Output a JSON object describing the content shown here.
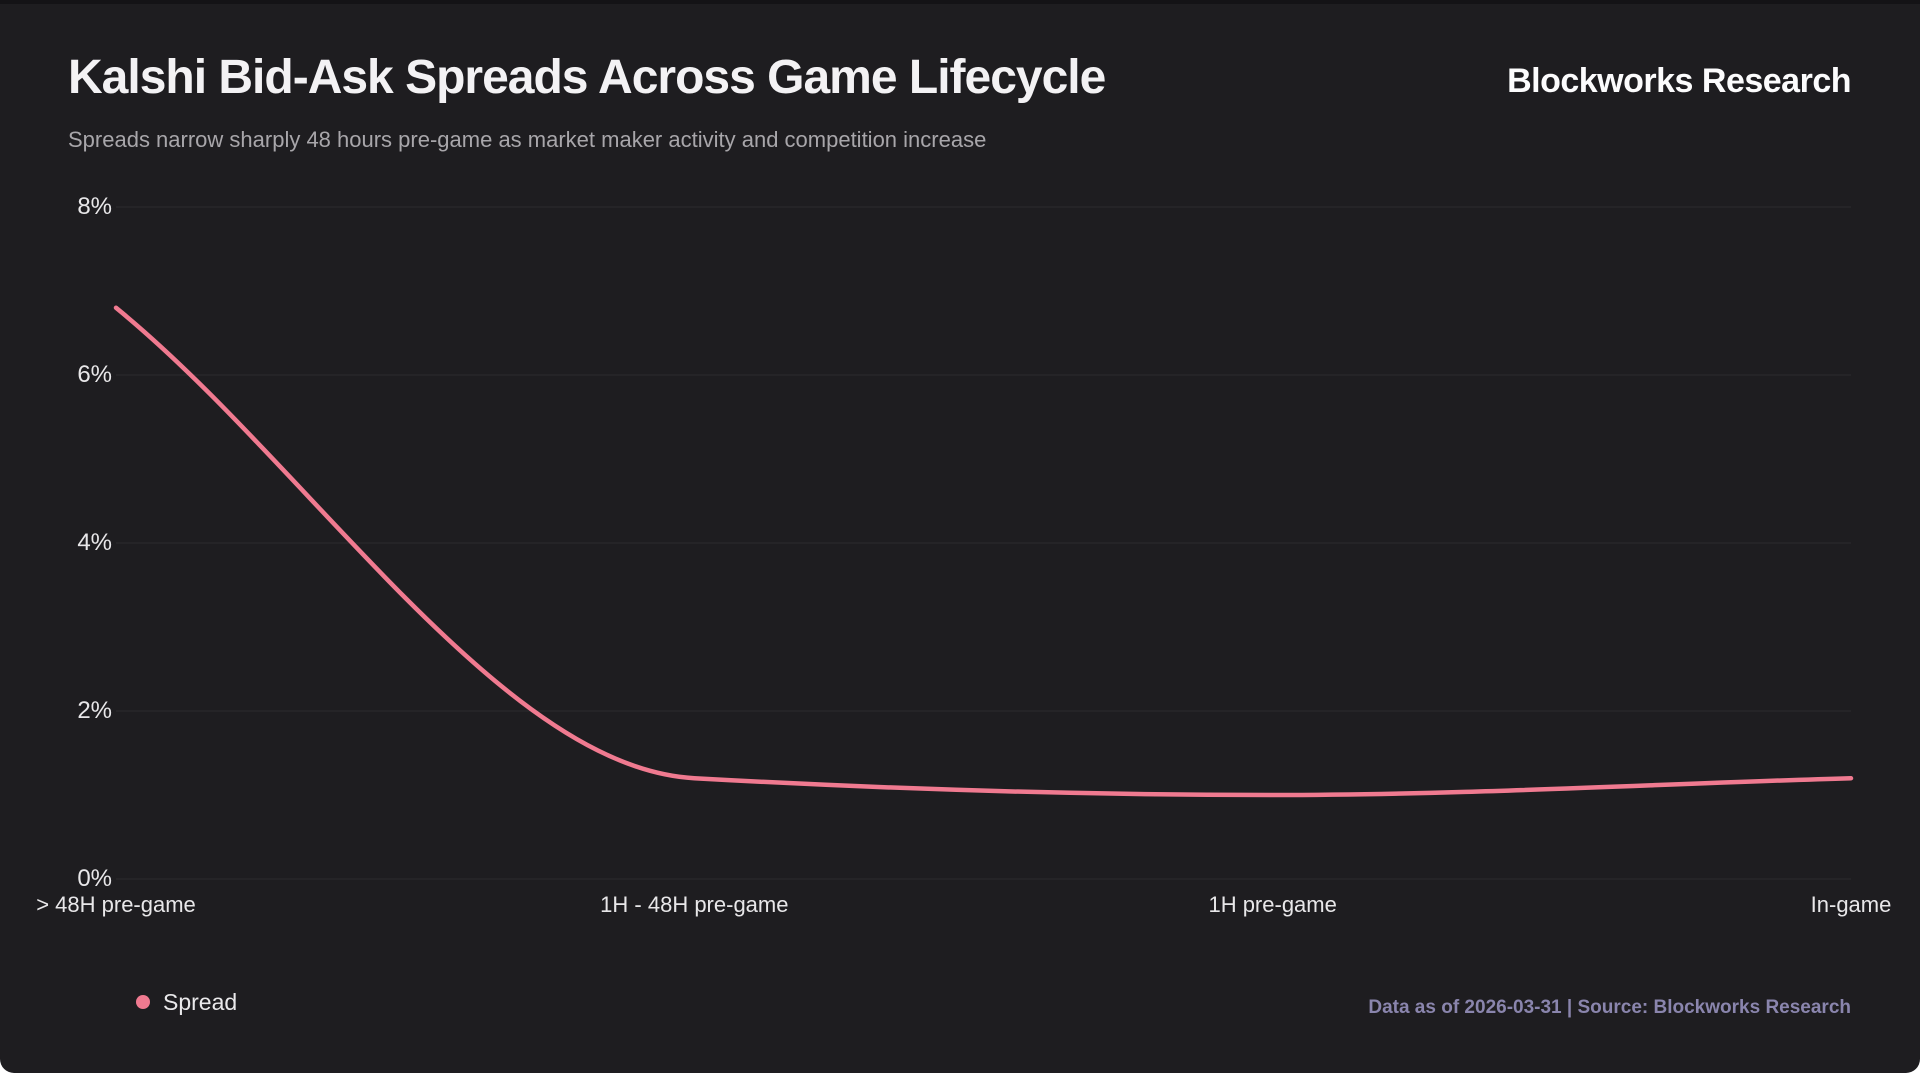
{
  "theme": {
    "page_background": "#ffffff",
    "card_background": "#1e1d20",
    "grid_color": "#2c2b2e",
    "axis_text_color": "#e8e7e9",
    "title_color": "#f3f2f4",
    "subtitle_color": "#a8a6aa",
    "accent_pink": "#f07a90",
    "footer_color": "#8a85ad"
  },
  "header": {
    "title": "Kalshi Bid-Ask Spreads Across Game Lifecycle",
    "subtitle": "Spreads narrow sharply 48 hours pre-game as market maker activity and competition increase",
    "brand": "Blockworks Research"
  },
  "legend": {
    "items": [
      {
        "label": "Spread",
        "color": "#f07a90"
      }
    ]
  },
  "footer": {
    "text": "Data as of 2026-03-31 | Source: Blockworks Research",
    "color": "#8a85ad"
  },
  "chart_data": {
    "type": "line",
    "title": "Kalshi Bid-Ask Spreads Across Game Lifecycle",
    "categories": [
      "> 48H pre-game",
      "1H - 48H pre-game",
      "1H pre-game",
      "In-game"
    ],
    "series": [
      {
        "name": "Spread",
        "color": "#f07a90",
        "values": [
          6.8,
          1.2,
          1.0,
          1.2
        ]
      }
    ],
    "unit": "%",
    "xlabel": "",
    "ylabel": "",
    "ylim": [
      0,
      8
    ],
    "yticks": [
      0,
      2,
      4,
      6,
      8
    ],
    "grid": "horizontal",
    "curve": "monotone",
    "legend_position": "bottom-left",
    "line_width": 4.5
  }
}
